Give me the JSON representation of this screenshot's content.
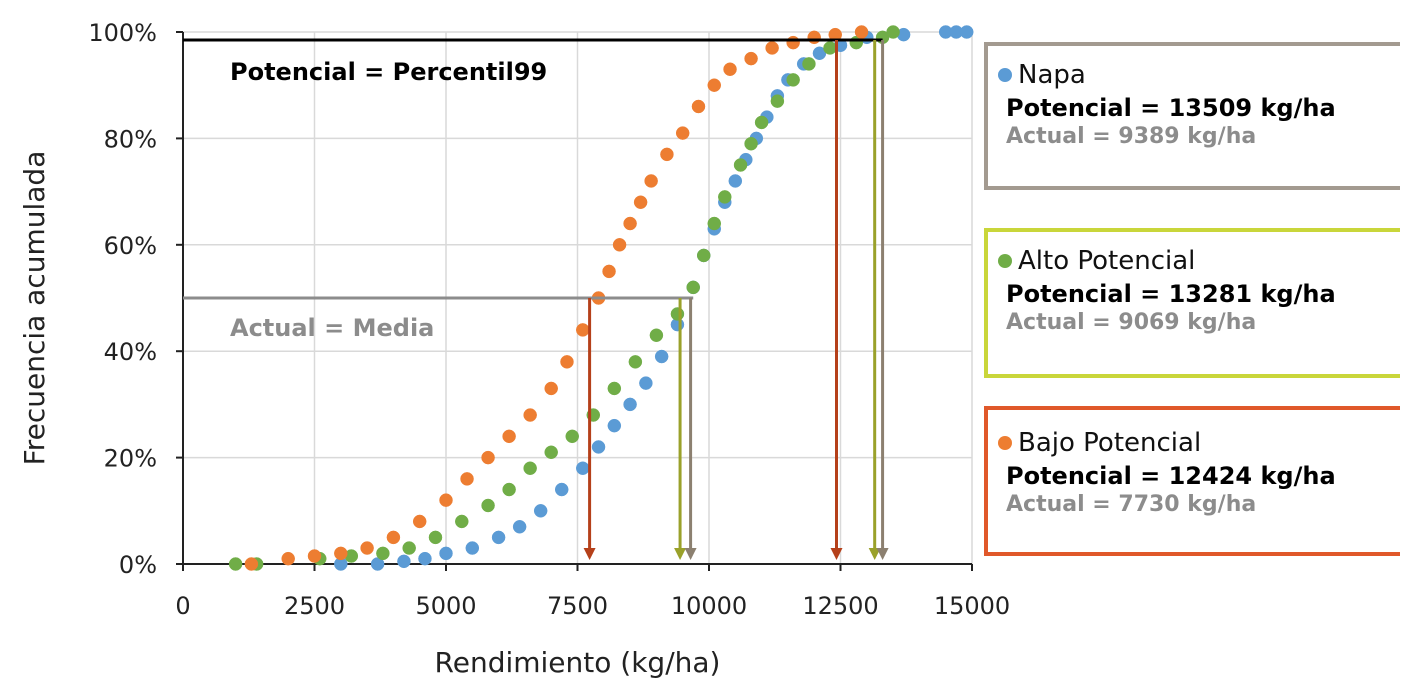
{
  "chart_data": {
    "type": "scatter",
    "title": "",
    "xlabel": "Rendimiento (kg/ha)",
    "ylabel": "Frecuencia acumulada",
    "xlim": [
      0,
      15000
    ],
    "ylim": [
      0,
      1
    ],
    "x_ticks": [
      0,
      2500,
      5000,
      7500,
      10000,
      12500,
      15000
    ],
    "x_tick_labels": [
      "0",
      "2500",
      "5000",
      "7500",
      "10000",
      "12500",
      "15000"
    ],
    "y_ticks": [
      0,
      0.2,
      0.4,
      0.6,
      0.8,
      1.0
    ],
    "y_tick_labels": [
      "0%",
      "20%",
      "40%",
      "60%",
      "80%",
      "100%"
    ],
    "grid": true,
    "legend_position": "right",
    "series": [
      {
        "name": "Napa",
        "color": "#5b9bd5",
        "potencial_label": "Potencial = 13509 kg/ha",
        "actual_label": "Actual = 9389 kg/ha",
        "potencial": 13509,
        "actual": 9389,
        "points": [
          [
            3000,
            0.0
          ],
          [
            3700,
            0.0
          ],
          [
            4200,
            0.005
          ],
          [
            4600,
            0.01
          ],
          [
            5000,
            0.02
          ],
          [
            5500,
            0.03
          ],
          [
            6000,
            0.05
          ],
          [
            6400,
            0.07
          ],
          [
            6800,
            0.1
          ],
          [
            7200,
            0.14
          ],
          [
            7600,
            0.18
          ],
          [
            7900,
            0.22
          ],
          [
            8200,
            0.26
          ],
          [
            8500,
            0.3
          ],
          [
            8800,
            0.34
          ],
          [
            9100,
            0.39
          ],
          [
            9400,
            0.45
          ],
          [
            9700,
            0.52
          ],
          [
            9900,
            0.58
          ],
          [
            10100,
            0.63
          ],
          [
            10300,
            0.68
          ],
          [
            10500,
            0.72
          ],
          [
            10700,
            0.76
          ],
          [
            10900,
            0.8
          ],
          [
            11100,
            0.84
          ],
          [
            11300,
            0.88
          ],
          [
            11500,
            0.91
          ],
          [
            11800,
            0.94
          ],
          [
            12100,
            0.96
          ],
          [
            12500,
            0.975
          ],
          [
            13000,
            0.99
          ],
          [
            13700,
            0.995
          ],
          [
            14500,
            1.0
          ],
          [
            14700,
            1.0
          ],
          [
            14900,
            1.0
          ]
        ]
      },
      {
        "name": "Alto Potencial",
        "color": "#70ad47",
        "potencial_label": "Potencial = 13281 kg/ha",
        "actual_label": "Actual = 9069 kg/ha",
        "potencial": 13281,
        "actual": 9069,
        "points": [
          [
            1000,
            0.0
          ],
          [
            1400,
            0.0
          ],
          [
            2600,
            0.01
          ],
          [
            3200,
            0.015
          ],
          [
            3800,
            0.02
          ],
          [
            4300,
            0.03
          ],
          [
            4800,
            0.05
          ],
          [
            5300,
            0.08
          ],
          [
            5800,
            0.11
          ],
          [
            6200,
            0.14
          ],
          [
            6600,
            0.18
          ],
          [
            7000,
            0.21
          ],
          [
            7400,
            0.24
          ],
          [
            7800,
            0.28
          ],
          [
            8200,
            0.33
          ],
          [
            8600,
            0.38
          ],
          [
            9000,
            0.43
          ],
          [
            9400,
            0.47
          ],
          [
            9700,
            0.52
          ],
          [
            9900,
            0.58
          ],
          [
            10100,
            0.64
          ],
          [
            10300,
            0.69
          ],
          [
            10600,
            0.75
          ],
          [
            10800,
            0.79
          ],
          [
            11000,
            0.83
          ],
          [
            11300,
            0.87
          ],
          [
            11600,
            0.91
          ],
          [
            11900,
            0.94
          ],
          [
            12300,
            0.97
          ],
          [
            12800,
            0.98
          ],
          [
            13300,
            0.99
          ],
          [
            13500,
            1.0
          ]
        ]
      },
      {
        "name": "Bajo Potencial",
        "color": "#ed7d31",
        "potencial_label": "Potencial = 12424 kg/ha",
        "actual_label": "Actual = 7730 kg/ha",
        "potencial": 12424,
        "actual": 7730,
        "points": [
          [
            1300,
            0.0
          ],
          [
            2000,
            0.01
          ],
          [
            2500,
            0.015
          ],
          [
            3000,
            0.02
          ],
          [
            3500,
            0.03
          ],
          [
            4000,
            0.05
          ],
          [
            4500,
            0.08
          ],
          [
            5000,
            0.12
          ],
          [
            5400,
            0.16
          ],
          [
            5800,
            0.2
          ],
          [
            6200,
            0.24
          ],
          [
            6600,
            0.28
          ],
          [
            7000,
            0.33
          ],
          [
            7300,
            0.38
          ],
          [
            7600,
            0.44
          ],
          [
            7900,
            0.5
          ],
          [
            8100,
            0.55
          ],
          [
            8300,
            0.6
          ],
          [
            8500,
            0.64
          ],
          [
            8700,
            0.68
          ],
          [
            8900,
            0.72
          ],
          [
            9200,
            0.77
          ],
          [
            9500,
            0.81
          ],
          [
            9800,
            0.86
          ],
          [
            10100,
            0.9
          ],
          [
            10400,
            0.93
          ],
          [
            10800,
            0.95
          ],
          [
            11200,
            0.97
          ],
          [
            11600,
            0.98
          ],
          [
            12000,
            0.99
          ],
          [
            12400,
            0.995
          ],
          [
            12900,
            1.0
          ]
        ]
      }
    ],
    "annotations": {
      "potencial_rule": "Potencial = Percentil99",
      "actual_rule": "Actual = Media",
      "percentile99_line": {
        "y": 0.985,
        "x_end": 13300,
        "color": "#000000"
      },
      "mean_line": {
        "y": 0.5,
        "x_end": 9700,
        "color": "#8c8c8c"
      },
      "arrows": [
        {
          "x": 7730,
          "from_y": 0.5,
          "color": "#b5401a"
        },
        {
          "x": 9450,
          "from_y": 0.5,
          "color": "#9aa12a"
        },
        {
          "x": 9650,
          "from_y": 0.5,
          "color": "#8c8070"
        },
        {
          "x": 12424,
          "from_y": 0.985,
          "color": "#b5401a"
        },
        {
          "x": 13150,
          "from_y": 0.985,
          "color": "#9aa12a"
        },
        {
          "x": 13300,
          "from_y": 0.985,
          "color": "#8c8070"
        }
      ]
    }
  },
  "legend": [
    {
      "name": "Napa",
      "dot_color": "#5b9bd5",
      "border_color": "#a39a90",
      "potencial_label": "Potencial = 13509 kg/ha",
      "actual_label": "Actual = 9389 kg/ha"
    },
    {
      "name": "Alto Potencial",
      "dot_color": "#70ad47",
      "border_color": "#c9d63a",
      "potencial_label": "Potencial = 13281 kg/ha",
      "actual_label": "Actual = 9069 kg/ha"
    },
    {
      "name": "Bajo Potencial",
      "dot_color": "#ed7d31",
      "border_color": "#e0582a",
      "potencial_label": "Potencial = 12424 kg/ha",
      "actual_label": "Actual = 7730 kg/ha"
    }
  ]
}
